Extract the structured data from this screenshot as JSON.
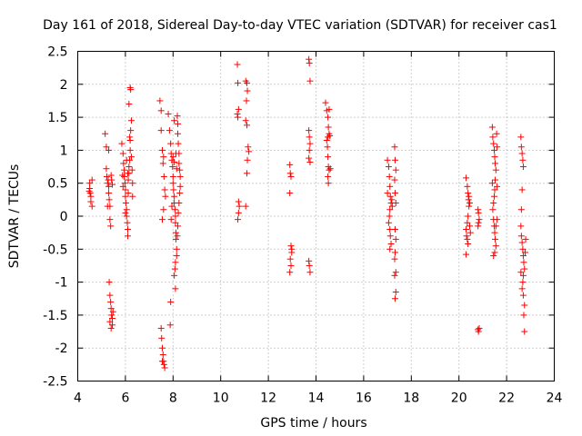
{
  "chart_data": {
    "type": "scatter",
    "title": "Day 161 of 2018, Sidereal Day-to-day VTEC variation (SDTVAR) for receiver cas1",
    "xlabel": "GPS time / hours",
    "ylabel": "SDTVAR / TECUs",
    "xlim": [
      4,
      24
    ],
    "ylim": [
      -2.5,
      2.5
    ],
    "xticks": [
      4,
      6,
      8,
      10,
      12,
      14,
      16,
      18,
      20,
      22,
      24
    ],
    "yticks": [
      -2.5,
      -2,
      -1.5,
      -1,
      -0.5,
      0,
      0.5,
      1,
      1.5,
      2,
      2.5
    ],
    "grid": true,
    "marker": "+",
    "color": "#ff0000",
    "series": [
      {
        "name": "SDTVAR",
        "points": [
          [
            4.5,
            0.5
          ],
          [
            4.5,
            0.42
          ],
          [
            4.52,
            0.35
          ],
          [
            4.55,
            0.3
          ],
          [
            4.55,
            0.22
          ],
          [
            4.6,
            0.15
          ],
          [
            4.6,
            0.55
          ],
          [
            4.48,
            0.38
          ],
          [
            5.15,
            1.25
          ],
          [
            5.2,
            1.05
          ],
          [
            5.2,
            0.72
          ],
          [
            5.22,
            0.6
          ],
          [
            5.25,
            0.5
          ],
          [
            5.28,
            0.55
          ],
          [
            5.3,
            0.45
          ],
          [
            5.3,
            0.35
          ],
          [
            5.32,
            0.25
          ],
          [
            5.35,
            0.15
          ],
          [
            5.35,
            -0.05
          ],
          [
            5.38,
            -0.15
          ],
          [
            5.4,
            0.62
          ],
          [
            5.42,
            0.55
          ],
          [
            5.45,
            0.48
          ],
          [
            5.25,
            0.15
          ],
          [
            5.3,
            1.0
          ],
          [
            5.32,
            -1.0
          ],
          [
            5.35,
            -1.2
          ],
          [
            5.38,
            -1.3
          ],
          [
            5.4,
            -1.4
          ],
          [
            5.42,
            -1.5
          ],
          [
            5.45,
            -1.55
          ],
          [
            5.45,
            -1.65
          ],
          [
            5.4,
            -1.7
          ],
          [
            5.48,
            -1.45
          ],
          [
            5.35,
            -1.6
          ],
          [
            5.85,
            1.1
          ],
          [
            5.9,
            0.95
          ],
          [
            5.92,
            0.8
          ],
          [
            5.95,
            0.7
          ],
          [
            5.95,
            0.6
          ],
          [
            5.98,
            0.5
          ],
          [
            6.0,
            0.4
          ],
          [
            6.0,
            0.3
          ],
          [
            6.02,
            0.2
          ],
          [
            6.05,
            0.1
          ],
          [
            6.05,
            0.0
          ],
          [
            6.08,
            -0.1
          ],
          [
            6.1,
            -0.2
          ],
          [
            6.1,
            -0.3
          ],
          [
            6.12,
            0.55
          ],
          [
            6.15,
            0.65
          ],
          [
            6.15,
            0.75
          ],
          [
            6.18,
            0.85
          ],
          [
            6.2,
            1.0
          ],
          [
            6.2,
            1.15
          ],
          [
            6.22,
            1.3
          ],
          [
            6.25,
            1.45
          ],
          [
            6.2,
            1.95
          ],
          [
            6.22,
            1.92
          ],
          [
            6.15,
            1.7
          ],
          [
            6.18,
            1.2
          ],
          [
            6.25,
            0.9
          ],
          [
            6.28,
            0.7
          ],
          [
            6.3,
            0.5
          ],
          [
            6.3,
            0.3
          ],
          [
            5.88,
            0.62
          ],
          [
            5.9,
            0.45
          ],
          [
            6.05,
            0.85
          ],
          [
            6.1,
            0.65
          ],
          [
            6.12,
            0.35
          ],
          [
            6.0,
            0.05
          ],
          [
            7.45,
            1.75
          ],
          [
            7.5,
            1.6
          ],
          [
            7.5,
            1.3
          ],
          [
            7.55,
            1.0
          ],
          [
            7.6,
            0.9
          ],
          [
            7.58,
            0.8
          ],
          [
            7.62,
            0.6
          ],
          [
            7.65,
            0.4
          ],
          [
            7.68,
            0.3
          ],
          [
            7.6,
            0.1
          ],
          [
            7.55,
            -0.05
          ],
          [
            7.5,
            -1.7
          ],
          [
            7.52,
            -1.85
          ],
          [
            7.55,
            -2.0
          ],
          [
            7.58,
            -2.1
          ],
          [
            7.6,
            -2.2
          ],
          [
            7.62,
            -2.25
          ],
          [
            7.65,
            -2.3
          ],
          [
            7.55,
            -2.2
          ],
          [
            7.8,
            1.55
          ],
          [
            7.85,
            1.3
          ],
          [
            7.9,
            1.1
          ],
          [
            7.92,
            0.95
          ],
          [
            7.95,
            0.85
          ],
          [
            7.98,
            0.75
          ],
          [
            8.0,
            0.6
          ],
          [
            8.0,
            0.5
          ],
          [
            8.02,
            0.4
          ],
          [
            8.05,
            0.3
          ],
          [
            8.05,
            0.2
          ],
          [
            8.08,
            0.1
          ],
          [
            8.1,
            0.0
          ],
          [
            8.1,
            -0.1
          ],
          [
            8.12,
            -0.25
          ],
          [
            8.12,
            -0.35
          ],
          [
            8.15,
            -0.5
          ],
          [
            8.15,
            -0.6
          ],
          [
            8.1,
            -0.7
          ],
          [
            8.08,
            -0.8
          ],
          [
            8.05,
            -0.9
          ],
          [
            8.1,
            -1.1
          ],
          [
            7.9,
            -1.3
          ],
          [
            7.88,
            -1.65
          ],
          [
            8.18,
            1.52
          ],
          [
            8.2,
            1.4
          ],
          [
            8.2,
            1.25
          ],
          [
            8.22,
            1.1
          ],
          [
            8.25,
            0.95
          ],
          [
            8.25,
            0.8
          ],
          [
            8.28,
            0.7
          ],
          [
            8.3,
            0.6
          ],
          [
            8.3,
            0.45
          ],
          [
            8.28,
            0.35
          ],
          [
            8.25,
            0.2
          ],
          [
            8.22,
            0.05
          ],
          [
            8.2,
            -0.15
          ],
          [
            8.18,
            -0.3
          ],
          [
            8.0,
            0.9
          ],
          [
            8.05,
            0.82
          ],
          [
            7.95,
            0.15
          ],
          [
            8.15,
            0.72
          ],
          [
            7.92,
            -0.05
          ],
          [
            8.12,
            0.95
          ],
          [
            8.05,
            1.45
          ],
          [
            10.7,
            2.3
          ],
          [
            10.72,
            2.02
          ],
          [
            10.75,
            1.62
          ],
          [
            10.7,
            1.55
          ],
          [
            10.72,
            1.5
          ],
          [
            10.75,
            0.22
          ],
          [
            10.78,
            0.15
          ],
          [
            10.72,
            -0.05
          ],
          [
            10.75,
            0.05
          ],
          [
            11.05,
            2.05
          ],
          [
            11.1,
            2.02
          ],
          [
            11.12,
            1.9
          ],
          [
            11.08,
            1.75
          ],
          [
            11.05,
            1.45
          ],
          [
            11.1,
            1.38
          ],
          [
            11.15,
            1.05
          ],
          [
            11.18,
            0.98
          ],
          [
            11.12,
            0.85
          ],
          [
            11.1,
            0.65
          ],
          [
            11.05,
            0.15
          ],
          [
            12.9,
            0.78
          ],
          [
            12.92,
            0.65
          ],
          [
            12.95,
            0.6
          ],
          [
            12.9,
            0.35
          ],
          [
            12.95,
            -0.45
          ],
          [
            12.98,
            -0.55
          ],
          [
            12.92,
            -0.65
          ],
          [
            12.95,
            -0.75
          ],
          [
            12.9,
            -0.85
          ],
          [
            12.98,
            -0.5
          ],
          [
            13.7,
            2.38
          ],
          [
            13.72,
            2.32
          ],
          [
            13.75,
            2.05
          ],
          [
            13.7,
            1.3
          ],
          [
            13.72,
            1.2
          ],
          [
            13.75,
            1.1
          ],
          [
            13.72,
            1.0
          ],
          [
            13.7,
            0.88
          ],
          [
            13.75,
            0.82
          ],
          [
            13.7,
            -0.68
          ],
          [
            13.72,
            -0.75
          ],
          [
            13.75,
            -0.85
          ],
          [
            14.4,
            1.72
          ],
          [
            14.45,
            1.6
          ],
          [
            14.5,
            1.5
          ],
          [
            14.52,
            1.35
          ],
          [
            14.55,
            1.25
          ],
          [
            14.5,
            1.2
          ],
          [
            14.48,
            1.05
          ],
          [
            14.5,
            0.9
          ],
          [
            14.52,
            0.75
          ],
          [
            14.55,
            0.7
          ],
          [
            14.5,
            0.6
          ],
          [
            14.52,
            0.5
          ],
          [
            14.45,
            1.15
          ],
          [
            14.55,
            1.62
          ],
          [
            14.58,
            1.22
          ],
          [
            14.6,
            0.72
          ],
          [
            17.0,
            0.85
          ],
          [
            17.05,
            0.75
          ],
          [
            17.08,
            0.6
          ],
          [
            17.1,
            0.45
          ],
          [
            17.12,
            0.3
          ],
          [
            17.15,
            0.2
          ],
          [
            17.1,
            0.1
          ],
          [
            17.08,
            0.0
          ],
          [
            17.05,
            -0.1
          ],
          [
            17.1,
            -0.2
          ],
          [
            17.12,
            -0.3
          ],
          [
            17.15,
            -0.42
          ],
          [
            17.1,
            -0.5
          ],
          [
            17.18,
            0.25
          ],
          [
            17.2,
            0.15
          ],
          [
            17.0,
            0.35
          ],
          [
            17.3,
            1.05
          ],
          [
            17.32,
            0.85
          ],
          [
            17.35,
            0.7
          ],
          [
            17.3,
            0.55
          ],
          [
            17.32,
            0.35
          ],
          [
            17.35,
            0.2
          ],
          [
            17.32,
            -0.2
          ],
          [
            17.35,
            -0.35
          ],
          [
            17.32,
            -0.55
          ],
          [
            17.3,
            -0.65
          ],
          [
            17.35,
            -0.85
          ],
          [
            17.3,
            -0.9
          ],
          [
            17.35,
            -1.15
          ],
          [
            17.32,
            -1.25
          ],
          [
            20.3,
            0.58
          ],
          [
            20.35,
            0.45
          ],
          [
            20.38,
            0.35
          ],
          [
            20.4,
            0.25
          ],
          [
            20.42,
            0.15
          ],
          [
            20.38,
            0.0
          ],
          [
            20.35,
            -0.1
          ],
          [
            20.3,
            -0.2
          ],
          [
            20.32,
            -0.3
          ],
          [
            20.35,
            -0.35
          ],
          [
            20.38,
            -0.42
          ],
          [
            20.3,
            -0.58
          ],
          [
            20.42,
            0.3
          ],
          [
            20.45,
            0.2
          ],
          [
            20.45,
            -0.15
          ],
          [
            20.48,
            -0.25
          ],
          [
            20.8,
            0.1
          ],
          [
            20.82,
            0.05
          ],
          [
            20.85,
            -0.05
          ],
          [
            20.82,
            -0.1
          ],
          [
            20.8,
            -0.15
          ],
          [
            20.85,
            -1.7
          ],
          [
            20.82,
            -1.75
          ],
          [
            20.8,
            -1.72
          ],
          [
            21.4,
            1.35
          ],
          [
            21.42,
            1.2
          ],
          [
            21.45,
            1.1
          ],
          [
            21.48,
            1.0
          ],
          [
            21.5,
            0.9
          ],
          [
            21.52,
            0.8
          ],
          [
            21.55,
            0.7
          ],
          [
            21.52,
            0.55
          ],
          [
            21.5,
            0.4
          ],
          [
            21.48,
            0.3
          ],
          [
            21.45,
            0.2
          ],
          [
            21.42,
            0.1
          ],
          [
            21.45,
            -0.05
          ],
          [
            21.48,
            -0.15
          ],
          [
            21.5,
            -0.25
          ],
          [
            21.52,
            -0.35
          ],
          [
            21.55,
            -0.45
          ],
          [
            21.5,
            -0.55
          ],
          [
            21.45,
            -0.6
          ],
          [
            21.58,
            1.25
          ],
          [
            21.6,
            1.05
          ],
          [
            21.6,
            0.45
          ],
          [
            21.6,
            -0.05
          ],
          [
            21.55,
            -0.15
          ],
          [
            21.4,
            0.5
          ],
          [
            22.6,
            1.2
          ],
          [
            22.62,
            1.05
          ],
          [
            22.65,
            0.95
          ],
          [
            22.68,
            0.85
          ],
          [
            22.7,
            0.75
          ],
          [
            22.65,
            0.4
          ],
          [
            22.62,
            0.1
          ],
          [
            22.6,
            -0.15
          ],
          [
            22.62,
            -0.3
          ],
          [
            22.65,
            -0.4
          ],
          [
            22.68,
            -0.5
          ],
          [
            22.7,
            -0.6
          ],
          [
            22.72,
            -0.7
          ],
          [
            22.75,
            -0.8
          ],
          [
            22.7,
            -0.9
          ],
          [
            22.68,
            -1.0
          ],
          [
            22.65,
            -1.1
          ],
          [
            22.7,
            -1.2
          ],
          [
            22.75,
            -1.35
          ],
          [
            22.72,
            -1.5
          ],
          [
            22.75,
            -1.75
          ],
          [
            22.78,
            -0.55
          ],
          [
            22.8,
            -0.35
          ],
          [
            22.6,
            -0.85
          ]
        ]
      }
    ]
  }
}
